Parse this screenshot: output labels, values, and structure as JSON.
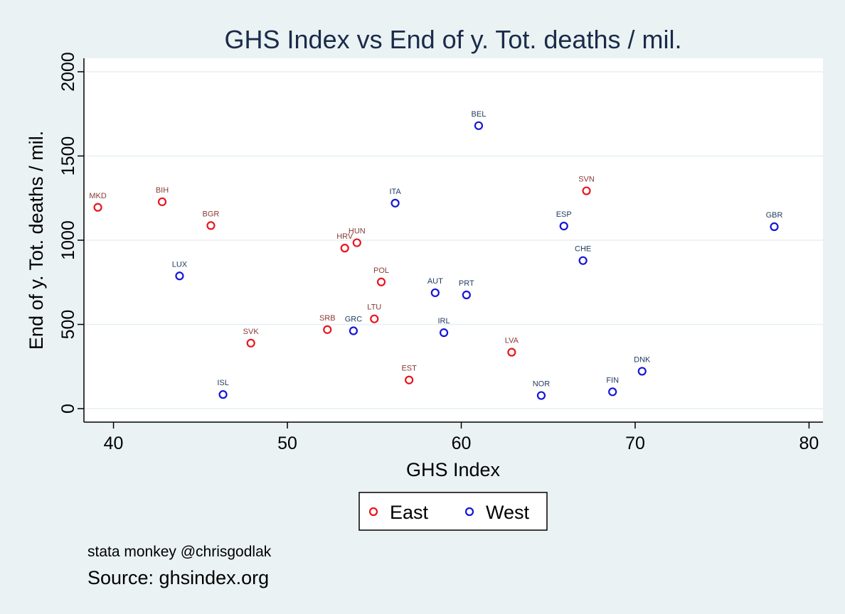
{
  "colors": {
    "background": "#eaf2f3",
    "plot_background": "#ffffff",
    "grid": "#e6eff1",
    "east_marker": "#e8141e",
    "west_marker": "#1414d9",
    "east_label": "#8a3a36",
    "west_label": "#1f3a5f",
    "title": "#1a2b4a"
  },
  "chart_data": {
    "type": "scatter",
    "title": "GHS Index vs End of y. Tot. deaths / mil.",
    "xlabel": "GHS Index",
    "ylabel": "End of y. Tot. deaths / mil.",
    "xlim": [
      38.3,
      80.8
    ],
    "ylim": [
      -80,
      2080
    ],
    "xticks": [
      40,
      50,
      60,
      70,
      80
    ],
    "yticks": [
      0,
      500,
      1000,
      1500,
      2000
    ],
    "grid": "horizontal",
    "legend_position": "bottom-center",
    "series": [
      {
        "name": "East",
        "color": "#e8141e",
        "points": [
          {
            "label": "MKD",
            "x": 39.1,
            "y": 1195
          },
          {
            "label": "BIH",
            "x": 42.8,
            "y": 1228
          },
          {
            "label": "BGR",
            "x": 45.6,
            "y": 1087
          },
          {
            "label": "HRV",
            "x": 53.3,
            "y": 953
          },
          {
            "label": "HUN",
            "x": 54.0,
            "y": 985
          },
          {
            "label": "POL",
            "x": 55.4,
            "y": 752
          },
          {
            "label": "SRB",
            "x": 52.3,
            "y": 469
          },
          {
            "label": "LTU",
            "x": 55.0,
            "y": 533
          },
          {
            "label": "SVK",
            "x": 47.9,
            "y": 389
          },
          {
            "label": "EST",
            "x": 57.0,
            "y": 170
          },
          {
            "label": "LVA",
            "x": 62.9,
            "y": 335
          },
          {
            "label": "SVN",
            "x": 67.2,
            "y": 1293
          }
        ]
      },
      {
        "name": "West",
        "color": "#1414d9",
        "points": [
          {
            "label": "LUX",
            "x": 43.8,
            "y": 788
          },
          {
            "label": "ISL",
            "x": 46.3,
            "y": 84
          },
          {
            "label": "GRC",
            "x": 53.8,
            "y": 462
          },
          {
            "label": "ITA",
            "x": 56.2,
            "y": 1220
          },
          {
            "label": "AUT",
            "x": 58.5,
            "y": 688
          },
          {
            "label": "IRL",
            "x": 59.0,
            "y": 451
          },
          {
            "label": "PRT",
            "x": 60.3,
            "y": 675
          },
          {
            "label": "BEL",
            "x": 61.0,
            "y": 1680
          },
          {
            "label": "NOR",
            "x": 64.6,
            "y": 78
          },
          {
            "label": "ESP",
            "x": 65.9,
            "y": 1084
          },
          {
            "label": "CHE",
            "x": 67.0,
            "y": 879
          },
          {
            "label": "FIN",
            "x": 68.7,
            "y": 100
          },
          {
            "label": "DNK",
            "x": 70.4,
            "y": 222
          },
          {
            "label": "GBR",
            "x": 78.0,
            "y": 1080
          }
        ]
      }
    ],
    "annotations": [
      "stata monkey @chrisgodlak",
      "Source: ghsindex.org"
    ]
  }
}
